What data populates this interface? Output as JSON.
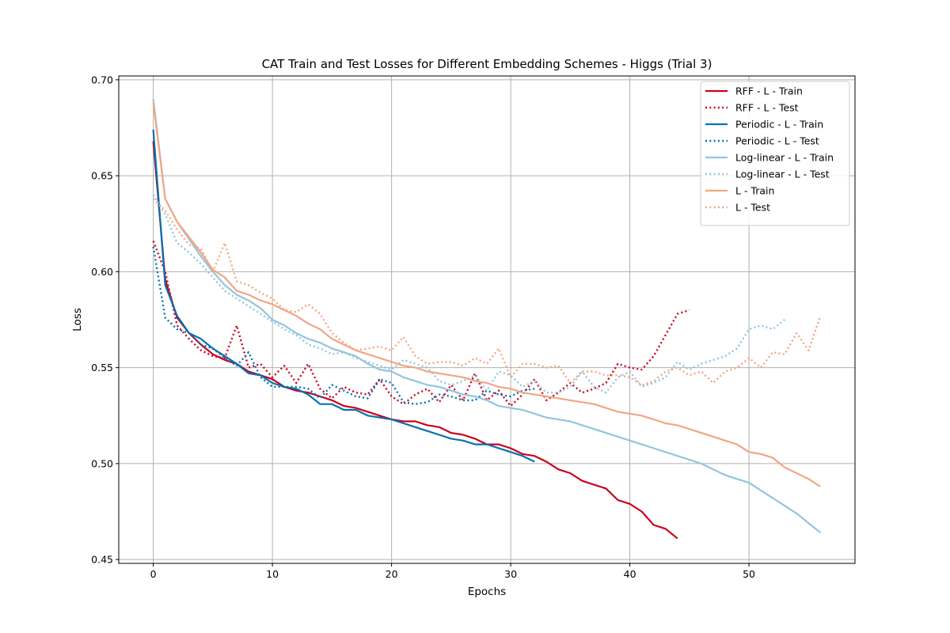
{
  "chart_data": {
    "type": "line",
    "title": "CAT Train and Test Losses for Different Embedding Schemes - Higgs (Trial 3)",
    "xlabel": "Epochs",
    "ylabel": "Loss",
    "xlim": [
      -2.9,
      58.9
    ],
    "ylim": [
      0.448,
      0.702
    ],
    "xticks": [
      0,
      10,
      20,
      30,
      40,
      50
    ],
    "yticks": [
      0.45,
      0.5,
      0.55,
      0.6,
      0.65,
      0.7
    ],
    "ytick_labels": [
      "0.45",
      "0.50",
      "0.55",
      "0.60",
      "0.65",
      "0.70"
    ],
    "grid": true,
    "legend_position": "top-right",
    "series": [
      {
        "name": "RFF - L - Train",
        "color": "#ca0020",
        "style": "solid",
        "x_start": 0,
        "values": [
          0.668,
          0.596,
          0.576,
          0.568,
          0.562,
          0.557,
          0.554,
          0.552,
          0.548,
          0.546,
          0.544,
          0.54,
          0.538,
          0.537,
          0.535,
          0.533,
          0.53,
          0.529,
          0.527,
          0.525,
          0.523,
          0.522,
          0.522,
          0.52,
          0.519,
          0.516,
          0.515,
          0.513,
          0.51,
          0.51,
          0.508,
          0.505,
          0.504,
          0.501,
          0.497,
          0.495,
          0.491,
          0.489,
          0.487,
          0.481,
          0.479,
          0.475,
          0.468,
          0.466,
          0.461
        ]
      },
      {
        "name": "RFF - L - Test",
        "color": "#ca0020",
        "style": "dotted",
        "x_start": 0,
        "values": [
          0.616,
          0.6,
          0.572,
          0.565,
          0.559,
          0.556,
          0.555,
          0.572,
          0.55,
          0.552,
          0.545,
          0.551,
          0.542,
          0.552,
          0.539,
          0.534,
          0.54,
          0.537,
          0.536,
          0.544,
          0.535,
          0.531,
          0.536,
          0.539,
          0.532,
          0.541,
          0.533,
          0.547,
          0.533,
          0.538,
          0.53,
          0.536,
          0.544,
          0.533,
          0.537,
          0.542,
          0.537,
          0.539,
          0.542,
          0.552,
          0.55,
          0.549,
          0.556,
          0.567,
          0.578,
          0.58
        ]
      },
      {
        "name": "Periodic - L - Train",
        "color": "#0571b0",
        "style": "solid",
        "x_start": 0,
        "values": [
          0.674,
          0.593,
          0.577,
          0.568,
          0.565,
          0.56,
          0.556,
          0.552,
          0.547,
          0.546,
          0.542,
          0.54,
          0.539,
          0.536,
          0.531,
          0.531,
          0.528,
          0.528,
          0.525,
          0.524,
          0.523,
          0.521,
          0.519,
          0.517,
          0.515,
          0.513,
          0.512,
          0.51,
          0.51,
          0.508,
          0.506,
          0.504,
          0.501
        ]
      },
      {
        "name": "Periodic - L - Test",
        "color": "#0571b0",
        "style": "dotted",
        "x_start": 0,
        "values": [
          0.613,
          0.576,
          0.57,
          0.568,
          0.562,
          0.56,
          0.555,
          0.551,
          0.558,
          0.545,
          0.54,
          0.54,
          0.54,
          0.539,
          0.534,
          0.541,
          0.538,
          0.535,
          0.534,
          0.544,
          0.542,
          0.532,
          0.531,
          0.532,
          0.536,
          0.535,
          0.533,
          0.533,
          0.538,
          0.536,
          0.535,
          0.538,
          0.539
        ]
      },
      {
        "name": "Log-linear - L - Train",
        "color": "#92c5de",
        "style": "solid",
        "x_start": 0,
        "values": [
          0.69,
          0.638,
          0.626,
          0.617,
          0.608,
          0.6,
          0.593,
          0.588,
          0.585,
          0.581,
          0.575,
          0.572,
          0.568,
          0.565,
          0.563,
          0.56,
          0.558,
          0.556,
          0.552,
          0.549,
          0.548,
          0.545,
          0.543,
          0.541,
          0.54,
          0.538,
          0.536,
          0.535,
          0.533,
          0.53,
          0.529,
          0.528,
          0.526,
          0.524,
          0.523,
          0.522,
          0.52,
          0.518,
          0.516,
          0.514,
          0.512,
          0.51,
          0.508,
          0.506,
          0.504,
          0.502,
          0.5,
          0.497,
          0.494,
          0.492,
          0.49,
          0.486,
          0.482,
          0.478,
          0.474,
          0.469,
          0.464
        ]
      },
      {
        "name": "Log-linear - L - Test",
        "color": "#92c5de",
        "style": "dotted",
        "x_start": 0,
        "values": [
          0.64,
          0.63,
          0.615,
          0.61,
          0.604,
          0.597,
          0.59,
          0.586,
          0.582,
          0.578,
          0.574,
          0.57,
          0.567,
          0.562,
          0.56,
          0.557,
          0.558,
          0.555,
          0.553,
          0.551,
          0.549,
          0.554,
          0.552,
          0.55,
          0.543,
          0.541,
          0.543,
          0.546,
          0.538,
          0.548,
          0.546,
          0.54,
          0.543,
          0.537,
          0.537,
          0.54,
          0.548,
          0.54,
          0.537,
          0.545,
          0.548,
          0.54,
          0.542,
          0.545,
          0.553,
          0.549,
          0.552,
          0.554,
          0.556,
          0.56,
          0.57,
          0.572,
          0.57,
          0.575
        ]
      },
      {
        "name": "L - Train",
        "color": "#f4a582",
        "style": "solid",
        "x_start": 0,
        "values": [
          0.688,
          0.638,
          0.626,
          0.618,
          0.61,
          0.601,
          0.597,
          0.59,
          0.588,
          0.585,
          0.583,
          0.58,
          0.577,
          0.573,
          0.57,
          0.565,
          0.562,
          0.559,
          0.557,
          0.555,
          0.553,
          0.551,
          0.55,
          0.548,
          0.547,
          0.546,
          0.545,
          0.543,
          0.542,
          0.54,
          0.539,
          0.537,
          0.536,
          0.535,
          0.534,
          0.533,
          0.532,
          0.531,
          0.529,
          0.527,
          0.526,
          0.525,
          0.523,
          0.521,
          0.52,
          0.518,
          0.516,
          0.514,
          0.512,
          0.51,
          0.506,
          0.505,
          0.503,
          0.498,
          0.495,
          0.492,
          0.488
        ]
      },
      {
        "name": "L - Test",
        "color": "#f4a582",
        "style": "dotted",
        "x_start": 0,
        "values": [
          0.638,
          0.632,
          0.622,
          0.614,
          0.612,
          0.6,
          0.615,
          0.595,
          0.593,
          0.589,
          0.586,
          0.58,
          0.579,
          0.583,
          0.578,
          0.568,
          0.563,
          0.559,
          0.56,
          0.561,
          0.559,
          0.566,
          0.556,
          0.552,
          0.553,
          0.553,
          0.551,
          0.555,
          0.552,
          0.56,
          0.545,
          0.552,
          0.552,
          0.55,
          0.551,
          0.542,
          0.548,
          0.548,
          0.546,
          0.546,
          0.545,
          0.541,
          0.543,
          0.548,
          0.55,
          0.546,
          0.548,
          0.542,
          0.548,
          0.55,
          0.555,
          0.55,
          0.558,
          0.557,
          0.568,
          0.559,
          0.577
        ]
      }
    ]
  }
}
